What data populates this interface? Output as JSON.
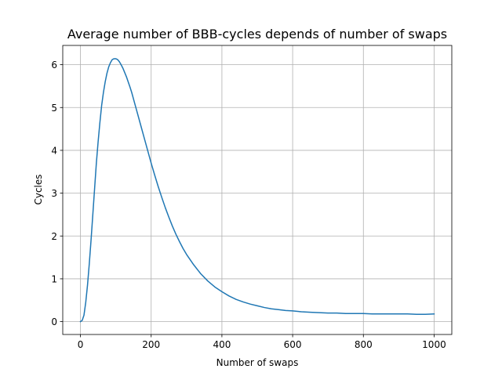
{
  "chart_data": {
    "type": "line",
    "title": "Average number of BBB-cycles depends of number of swaps",
    "xlabel": "Number of swaps",
    "ylabel": "Cycles",
    "xlim": [
      -50,
      1050
    ],
    "ylim": [
      -0.3,
      6.45
    ],
    "xticks": [
      0,
      200,
      400,
      600,
      800,
      1000
    ],
    "yticks": [
      0,
      1,
      2,
      3,
      4,
      5,
      6
    ],
    "grid": true,
    "legend": "none",
    "color": "#1f77b4",
    "series": [
      {
        "x": [
          0,
          5,
          10,
          15,
          20,
          25,
          30,
          35,
          40,
          45,
          50,
          55,
          60,
          65,
          70,
          75,
          80,
          85,
          90,
          95,
          100,
          105,
          110,
          115,
          120,
          125,
          130,
          135,
          140,
          145,
          150,
          155,
          160,
          170,
          180,
          190,
          200,
          210,
          220,
          230,
          240,
          250,
          260,
          270,
          280,
          290,
          300,
          320,
          340,
          360,
          380,
          400,
          420,
          440,
          460,
          480,
          500,
          520,
          540,
          560,
          580,
          600,
          625,
          650,
          675,
          700,
          725,
          750,
          775,
          800,
          825,
          850,
          875,
          900,
          925,
          950,
          975,
          1000
        ],
        "y": [
          0.0,
          0.03,
          0.15,
          0.45,
          0.85,
          1.35,
          1.9,
          2.5,
          3.1,
          3.7,
          4.2,
          4.65,
          5.05,
          5.35,
          5.6,
          5.8,
          5.95,
          6.05,
          6.12,
          6.14,
          6.14,
          6.12,
          6.07,
          6.0,
          5.92,
          5.82,
          5.72,
          5.6,
          5.48,
          5.35,
          5.2,
          5.05,
          4.9,
          4.6,
          4.3,
          4.0,
          3.7,
          3.42,
          3.15,
          2.9,
          2.66,
          2.44,
          2.23,
          2.04,
          1.87,
          1.71,
          1.57,
          1.33,
          1.12,
          0.95,
          0.81,
          0.7,
          0.6,
          0.52,
          0.46,
          0.41,
          0.37,
          0.33,
          0.3,
          0.28,
          0.26,
          0.25,
          0.23,
          0.22,
          0.21,
          0.2,
          0.2,
          0.19,
          0.19,
          0.19,
          0.18,
          0.18,
          0.18,
          0.18,
          0.18,
          0.17,
          0.17,
          0.18
        ]
      }
    ]
  }
}
